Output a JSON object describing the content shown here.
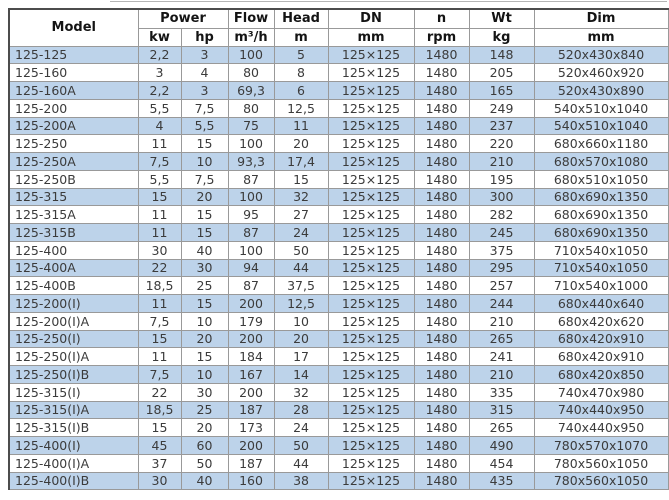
{
  "colors": {
    "row_shade": "#bdd3ea",
    "grid_line": "#999999",
    "outer_border": "#4c4c4c",
    "data_text": "#3b3b3b"
  },
  "table": {
    "header": {
      "model": "Model",
      "power": "Power",
      "power_kw": "kw",
      "power_hp": "hp",
      "flow": "Flow",
      "flow_unit": "m³/h",
      "head": "Head",
      "head_unit": "m",
      "dn": "DN",
      "dn_unit": "mm",
      "n": "n",
      "n_unit": "rpm",
      "wt": "Wt",
      "wt_unit": "kg",
      "dim": "Dim",
      "dim_unit": "mm"
    },
    "rows": [
      [
        "125-125",
        "2,2",
        "3",
        "100",
        "5",
        "125×125",
        "1480",
        "148",
        "520x430x840"
      ],
      [
        "125-160",
        "3",
        "4",
        "80",
        "8",
        "125×125",
        "1480",
        "205",
        "520x460x920"
      ],
      [
        "125-160A",
        "2,2",
        "3",
        "69,3",
        "6",
        "125×125",
        "1480",
        "165",
        "520x430x890"
      ],
      [
        "125-200",
        "5,5",
        "7,5",
        "80",
        "12,5",
        "125×125",
        "1480",
        "249",
        "540x510x1040"
      ],
      [
        "125-200A",
        "4",
        "5,5",
        "75",
        "11",
        "125×125",
        "1480",
        "237",
        "540x510x1040"
      ],
      [
        "125-250",
        "11",
        "15",
        "100",
        "20",
        "125×125",
        "1480",
        "220",
        "680x660x1180"
      ],
      [
        "125-250A",
        "7,5",
        "10",
        "93,3",
        "17,4",
        "125×125",
        "1480",
        "210",
        "680x570x1080"
      ],
      [
        "125-250B",
        "5,5",
        "7,5",
        "87",
        "15",
        "125×125",
        "1480",
        "195",
        "680x510x1050"
      ],
      [
        "125-315",
        "15",
        "20",
        "100",
        "32",
        "125×125",
        "1480",
        "300",
        "680x690x1350"
      ],
      [
        "125-315A",
        "11",
        "15",
        "95",
        "27",
        "125×125",
        "1480",
        "282",
        "680x690x1350"
      ],
      [
        "125-315B",
        "11",
        "15",
        "87",
        "24",
        "125×125",
        "1480",
        "245",
        "680x690x1350"
      ],
      [
        "125-400",
        "30",
        "40",
        "100",
        "50",
        "125×125",
        "1480",
        "375",
        "710x540x1050"
      ],
      [
        "125-400A",
        "22",
        "30",
        "94",
        "44",
        "125×125",
        "1480",
        "295",
        "710x540x1050"
      ],
      [
        "125-400B",
        "18,5",
        "25",
        "87",
        "37,5",
        "125×125",
        "1480",
        "257",
        "710x540x1000"
      ],
      [
        "125-200(I)",
        "11",
        "15",
        "200",
        "12,5",
        "125×125",
        "1480",
        "244",
        "680x440x640"
      ],
      [
        "125-200(I)A",
        "7,5",
        "10",
        "179",
        "10",
        "125×125",
        "1480",
        "210",
        "680x420x620"
      ],
      [
        "125-250(I)",
        "15",
        "20",
        "200",
        "20",
        "125×125",
        "1480",
        "265",
        "680x420x910"
      ],
      [
        "125-250(I)A",
        "11",
        "15",
        "184",
        "17",
        "125×125",
        "1480",
        "241",
        "680x420x910"
      ],
      [
        "125-250(I)B",
        "7,5",
        "10",
        "167",
        "14",
        "125×125",
        "1480",
        "210",
        "680x420x850"
      ],
      [
        "125-315(I)",
        "22",
        "30",
        "200",
        "32",
        "125×125",
        "1480",
        "335",
        "740x470x980"
      ],
      [
        "125-315(I)A",
        "18,5",
        "25",
        "187",
        "28",
        "125×125",
        "1480",
        "315",
        "740x440x950"
      ],
      [
        "125-315(I)B",
        "15",
        "20",
        "173",
        "24",
        "125×125",
        "1480",
        "265",
        "740x440x950"
      ],
      [
        "125-400(I)",
        "45",
        "60",
        "200",
        "50",
        "125×125",
        "1480",
        "490",
        "780x570x1070"
      ],
      [
        "125-400(I)A",
        "37",
        "50",
        "187",
        "44",
        "125×125",
        "1480",
        "454",
        "780x560x1050"
      ],
      [
        "125-400(I)B",
        "30",
        "40",
        "160",
        "38",
        "125×125",
        "1480",
        "435",
        "780x560x1050"
      ]
    ]
  }
}
